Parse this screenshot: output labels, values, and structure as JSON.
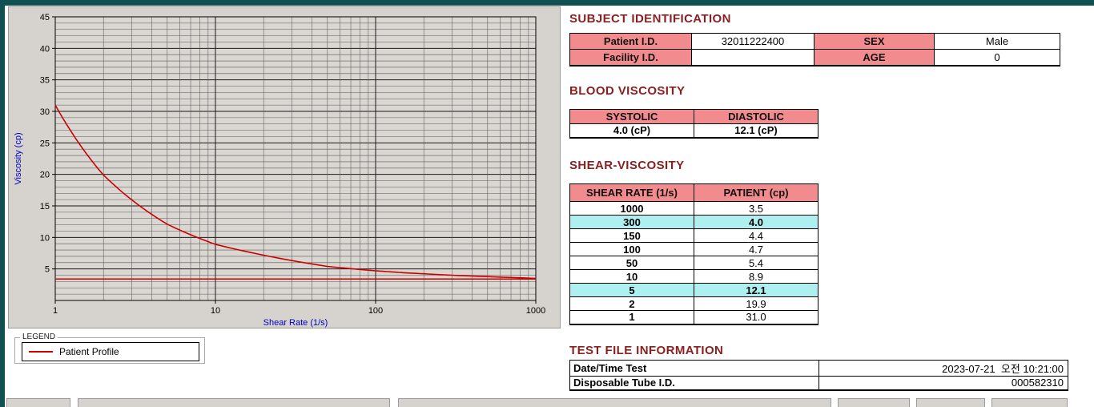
{
  "colors": {
    "titlebar": "#115050",
    "panel": "#d6d3ce",
    "header_bg": "#f28b8d",
    "highlight_bg": "#aeeff0",
    "heading_text": "#8a1f1f",
    "line": "#cc0000",
    "axis_label": "#0000c0"
  },
  "chart": {
    "xlabel": "Shear Rate (1/s)",
    "ylabel": "Viscosity (cp)",
    "legend_title": "LEGEND",
    "legend_label": "Patient Profile"
  },
  "chart_data": {
    "type": "line",
    "x": [
      1,
      2,
      5,
      10,
      50,
      100,
      150,
      300,
      1000
    ],
    "series": [
      {
        "name": "Patient Profile",
        "values": [
          31.0,
          19.9,
          12.1,
          8.9,
          5.4,
          4.7,
          4.4,
          4.0,
          3.5
        ]
      }
    ],
    "baseline": 3.4,
    "title": "",
    "xlabel": "Shear Rate (1/s)",
    "ylabel": "Viscosity (cp)",
    "x_scale": "log",
    "xlim": [
      1,
      1000
    ],
    "ylim": [
      0,
      45
    ],
    "y_tick_step": 5,
    "x_ticks": [
      1,
      10,
      100,
      1000
    ],
    "grid": "on",
    "legend_position": "below-left"
  },
  "subject": {
    "title": "SUBJECT IDENTIFICATION",
    "rows": [
      {
        "label1": "Patient I.D.",
        "value1": "32011222400",
        "label2": "SEX",
        "value2": "Male"
      },
      {
        "label1": "Facility I.D.",
        "value1": "",
        "label2": "AGE",
        "value2": "0"
      }
    ]
  },
  "blood_viscosity": {
    "title": "BLOOD VISCOSITY",
    "headers": [
      "SYSTOLIC",
      "DIASTOLIC"
    ],
    "values": [
      "4.0 (cP)",
      "12.1 (cP)"
    ]
  },
  "shear_viscosity": {
    "title": "SHEAR-VISCOSITY",
    "headers": [
      "SHEAR RATE (1/s)",
      "PATIENT (cp)"
    ],
    "rows": [
      {
        "rate": "1000",
        "value": "3.5",
        "highlight": false
      },
      {
        "rate": "300",
        "value": "4.0",
        "highlight": true
      },
      {
        "rate": "150",
        "value": "4.4",
        "highlight": false
      },
      {
        "rate": "100",
        "value": "4.7",
        "highlight": false
      },
      {
        "rate": "50",
        "value": "5.4",
        "highlight": false
      },
      {
        "rate": "10",
        "value": "8.9",
        "highlight": false
      },
      {
        "rate": "5",
        "value": "12.1",
        "highlight": true
      },
      {
        "rate": "2",
        "value": "19.9",
        "highlight": false
      },
      {
        "rate": "1",
        "value": "31.0",
        "highlight": false
      }
    ]
  },
  "test_file": {
    "title": "TEST FILE INFORMATION",
    "rows": [
      {
        "label": "Date/Time Test",
        "value": "2023-07-21  오전 10:21:00"
      },
      {
        "label": "Disposable Tube I.D.",
        "value": "000582310"
      }
    ]
  }
}
